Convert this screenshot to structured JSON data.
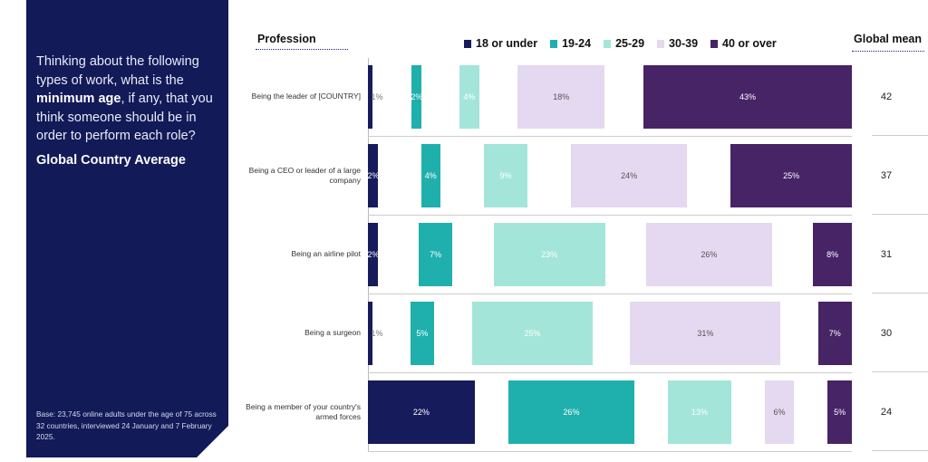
{
  "panel": {
    "question_pre": "Thinking about the following types of work, what is the ",
    "question_bold": "minimum age",
    "question_post": ", if any, that you think someone should be in order to perform each role?",
    "subtitle": "Global Country Average",
    "base": "Base: 23,745 online adults under the age of 75 across 32 countries, interviewed 24 January and 7 February 2025."
  },
  "chart_data": {
    "type": "bar",
    "orientation": "horizontal",
    "categories_header": "Profession",
    "mean_header": "Global mean",
    "categories": [
      "Being the leader of [COUNTRY]",
      "Being a CEO or leader of a large company",
      "Being an airline pilot",
      "Being a surgeon",
      "Being a member of your country's armed forces"
    ],
    "series": [
      {
        "name": "18 or under",
        "color": "#161b5c",
        "values": [
          1,
          2,
          2,
          1,
          22
        ]
      },
      {
        "name": "19-24",
        "color": "#1fb0ad",
        "values": [
          2,
          4,
          7,
          5,
          26
        ]
      },
      {
        "name": "25-29",
        "color": "#a3e6d9",
        "values": [
          4,
          9,
          23,
          25,
          13
        ]
      },
      {
        "name": "30-39",
        "color": "#e4d9f0",
        "values": [
          18,
          24,
          26,
          31,
          6
        ]
      },
      {
        "name": "40 or over",
        "color": "#462466",
        "values": [
          43,
          25,
          8,
          7,
          5
        ]
      }
    ],
    "value_labels": [
      [
        "1%",
        "2%",
        "4%",
        "18%",
        "43%"
      ],
      [
        "2%",
        "4%",
        "9%",
        "24%",
        "25%"
      ],
      [
        "2%",
        "7%",
        "23%",
        "26%",
        "8%"
      ],
      [
        "1%",
        "5%",
        "25%",
        "31%",
        "7%"
      ],
      [
        "22%",
        "26%",
        "13%",
        "6%",
        "5%"
      ]
    ],
    "global_mean": [
      "42",
      "37",
      "31",
      "30",
      "24"
    ],
    "legend": "top",
    "unit": "%"
  }
}
